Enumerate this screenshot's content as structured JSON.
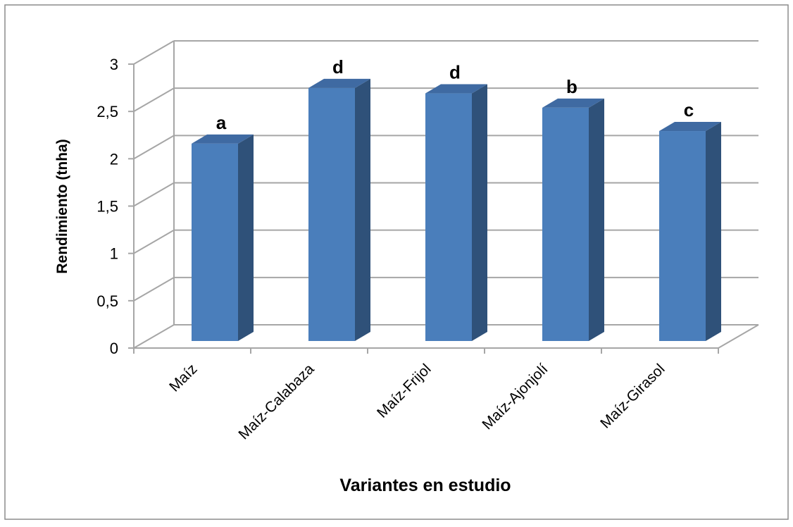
{
  "chart_data": {
    "type": "bar",
    "categories": [
      "Maíz",
      "Maíz-Calabaza",
      "Maíz-Frijol",
      "Maíz-Ajonjolí",
      "Maíz-Girasol"
    ],
    "values": [
      2.2,
      2.82,
      2.76,
      2.6,
      2.34
    ],
    "data_labels": [
      "a",
      "d",
      "d",
      "b",
      "c"
    ],
    "xlabel": "Variantes en estudio",
    "ylabel": "Rendimiento (tnha)",
    "ylim": [
      0,
      3
    ],
    "yticks": [
      0,
      0.5,
      1,
      1.5,
      2,
      2.5,
      3
    ],
    "ytick_labels": [
      "0",
      "0,5",
      "1",
      "1,5",
      "2",
      "2,5",
      "3"
    ],
    "grid": true,
    "legend": "none",
    "style": "3d-column",
    "colors": {
      "front": "#4a7ebb",
      "side": "#2f5179",
      "top": "#3f6aa2",
      "grid": "#a6a6a6",
      "text": "#000000"
    }
  }
}
